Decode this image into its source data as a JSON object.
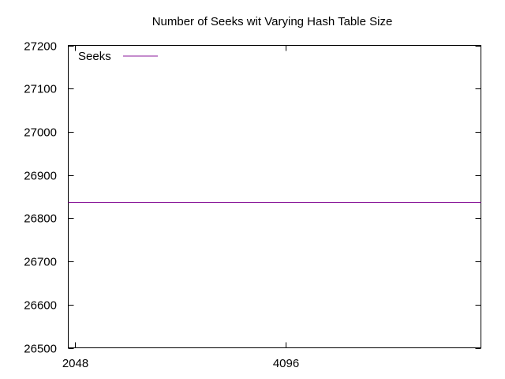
{
  "chart_data": {
    "type": "line",
    "title": "Number of Seeks wit Varying Hash Table Size",
    "xlabel": "",
    "ylabel": "",
    "x_ticks": [
      2048,
      4096
    ],
    "xlim": [
      1980,
      6000
    ],
    "ylim": [
      26500,
      27200
    ],
    "y_ticks": [
      26500,
      26600,
      26700,
      26800,
      26900,
      27000,
      27100,
      27200
    ],
    "grid": false,
    "legend_position": "top-left",
    "series": [
      {
        "name": "Seeks",
        "color": "#8b1a9b",
        "x": [
          1980,
          6000
        ],
        "y": [
          26837,
          26837
        ]
      }
    ]
  }
}
